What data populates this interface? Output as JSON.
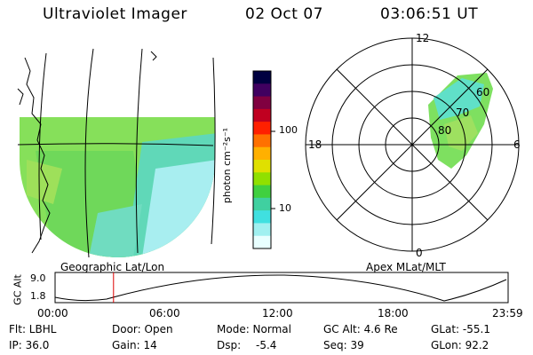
{
  "header": {
    "title": "Ultraviolet Imager",
    "date": "02 Oct 07",
    "time": "03:06:51 UT"
  },
  "left_map": {
    "caption": "Geographic Lat/Lon"
  },
  "colorbar": {
    "unit": "photon cm⁻²s⁻¹",
    "ticks": [
      "100",
      "10"
    ],
    "colors": [
      "#000040",
      "#400060",
      "#800040",
      "#c00020",
      "#ff2000",
      "#ff7000",
      "#ffb000",
      "#e0e000",
      "#90e000",
      "#40d040",
      "#40d0a0",
      "#40e0e0",
      "#a0f0f0",
      "#e8ffff"
    ]
  },
  "polar_plot": {
    "caption": "Apex MLat/MLT",
    "mlt_labels": {
      "top": "12",
      "bottom": "0",
      "left": "18",
      "right": "6"
    },
    "lat_labels": [
      "80",
      "70",
      "60"
    ]
  },
  "timeline": {
    "ylabel": "GC Alt",
    "yticks": [
      "9.0",
      "1.8"
    ],
    "xticks": [
      "00:00",
      "06:00",
      "12:00",
      "18:00",
      "23:59"
    ],
    "marker_fraction": 0.129
  },
  "info": {
    "flt": "Flt: LBHL",
    "door": "Door: Open",
    "mode": "Mode: Normal",
    "gc_alt": "GC Alt: 4.6 Re",
    "glat": "GLat: -55.1",
    "ip": "IP: 36.0",
    "gain": "Gain: 14",
    "dsp_label": "Dsp:",
    "dsp_value": "-5.4",
    "seq": "Seq: 39",
    "glon": "GLon: 92.2"
  },
  "colors": {
    "aurora_green": "#7ee060",
    "aurora_cyan": "#60e0c8",
    "marker": "#dd0000"
  }
}
